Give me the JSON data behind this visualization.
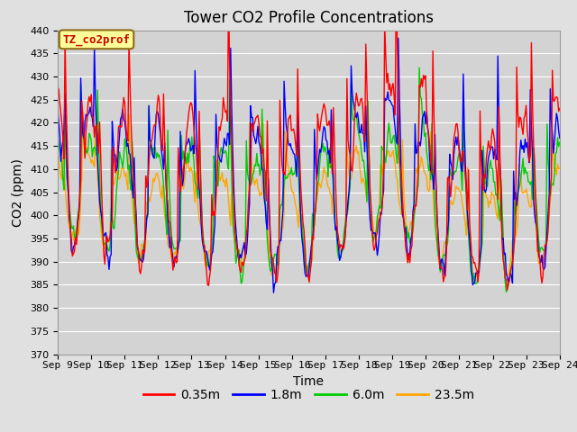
{
  "title": "Tower CO2 Profile Concentrations",
  "xlabel": "Time",
  "ylabel": "CO2 (ppm)",
  "annotation": "TZ_co2prof",
  "annotation_color": "#CC0000",
  "annotation_bg": "#FFFF99",
  "annotation_edge": "#8B6914",
  "ylim": [
    370,
    440
  ],
  "yticks": [
    370,
    375,
    380,
    385,
    390,
    395,
    400,
    405,
    410,
    415,
    420,
    425,
    430,
    435,
    440
  ],
  "xtick_labels": [
    "Sep 9",
    "Sep 10",
    "Sep 11",
    "Sep 12",
    "Sep 13",
    "Sep 14",
    "Sep 15",
    "Sep 16",
    "Sep 17",
    "Sep 18",
    "Sep 19",
    "Sep 20",
    "Sep 21",
    "Sep 22",
    "Sep 23",
    "Sep 24"
  ],
  "line_colors": [
    "#FF0000",
    "#0000FF",
    "#00CC00",
    "#FFA500"
  ],
  "line_labels": [
    "0.35m",
    "1.8m",
    "6.0m",
    "23.5m"
  ],
  "fig_bg_color": "#E0E0E0",
  "plot_bg_color": "#D3D3D3",
  "grid_color": "#FFFFFF",
  "title_fontsize": 12,
  "axis_label_fontsize": 10,
  "tick_fontsize": 8,
  "legend_fontsize": 10,
  "line_width": 1.0,
  "n_points": 480,
  "seed": 7,
  "base_co2": 400,
  "diurnal_amp": 12,
  "noise_scale": 2
}
